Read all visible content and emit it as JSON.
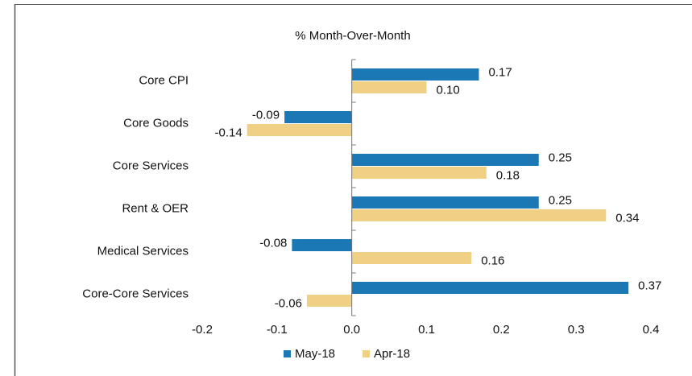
{
  "chart_data": {
    "type": "hbar",
    "subtitle": "% Month-Over-Month",
    "categories": [
      "Core CPI",
      "Core Goods",
      "Core Services",
      "Rent & OER",
      "Medical Services",
      "Core-Core Services"
    ],
    "series": [
      {
        "name": "May-18",
        "color": "#1c78b4",
        "values": [
          0.17,
          -0.09,
          0.25,
          0.25,
          -0.08,
          0.37
        ],
        "value_labels": [
          "0.17",
          "-0.09",
          "0.25",
          "0.25",
          "-0.08",
          "0.37"
        ]
      },
      {
        "name": "Apr-18",
        "color": "#efd085",
        "values": [
          0.1,
          -0.14,
          0.18,
          0.34,
          0.16,
          -0.06
        ],
        "value_labels": [
          "0.10",
          "-0.14",
          "0.18",
          "0.34",
          "0.16",
          "-0.06"
        ]
      }
    ],
    "xlim": [
      -0.2,
      0.4
    ],
    "xticks": [
      -0.2,
      -0.1,
      {
        "value": 0,
        "label": "0.0"
      },
      0.1,
      0.2,
      0.3,
      0.4
    ],
    "legend": "bottom"
  }
}
